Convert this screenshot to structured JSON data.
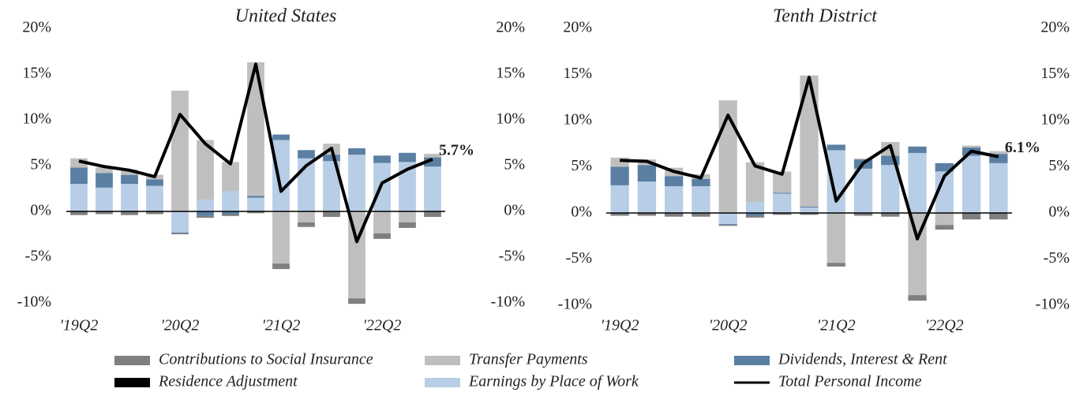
{
  "chart_data": [
    {
      "type": "bar",
      "title": "United States",
      "categories": [
        "'19Q2",
        null,
        null,
        null,
        "'20Q2",
        null,
        null,
        null,
        "'21Q2",
        null,
        null,
        null,
        "'22Q2",
        null,
        null
      ],
      "series": [
        {
          "name": "Contributions to Social Insurance",
          "color": "#7f7f7f",
          "values": [
            -0.4,
            -0.3,
            -0.4,
            -0.3,
            -0.1,
            -0.2,
            -0.2,
            -0.2,
            -0.6,
            -0.5,
            -0.6,
            -0.6,
            -0.6,
            -0.6,
            -0.6
          ]
        },
        {
          "name": "Transfer Payments",
          "color": "#bfbfbf",
          "values": [
            1.0,
            0.6,
            0.6,
            0.5,
            13.2,
            6.5,
            3.2,
            14.6,
            -5.7,
            -1.2,
            1.2,
            -9.5,
            -2.4,
            -1.2,
            0.4
          ]
        },
        {
          "name": "Dividends, Interest & Rent",
          "color": "#5a7fa3",
          "values": [
            1.8,
            1.6,
            1.0,
            0.7,
            -0.1,
            -0.5,
            -0.3,
            0.2,
            0.6,
            0.9,
            0.7,
            0.7,
            0.8,
            1.0,
            1.0
          ]
        },
        {
          "name": "Residence Adjustment",
          "color": "#000000",
          "values": [
            0,
            0,
            0,
            0,
            0,
            0,
            0,
            0,
            0,
            0,
            0,
            0,
            0,
            0,
            0
          ]
        },
        {
          "name": "Earnings by Place of Work",
          "color": "#b8cde6",
          "values": [
            3.0,
            2.6,
            3.0,
            2.8,
            -2.3,
            1.3,
            2.2,
            1.5,
            7.8,
            5.8,
            5.5,
            6.2,
            5.3,
            5.4,
            4.9
          ]
        },
        {
          "name": "Total Personal Income",
          "color": "#000000",
          "type": "line",
          "values": [
            5.5,
            4.9,
            4.5,
            3.8,
            10.6,
            7.4,
            5.2,
            16.1,
            2.2,
            5.0,
            6.9,
            -3.3,
            3.1,
            4.6,
            5.7
          ],
          "value_labels": [
            null,
            null,
            null,
            null,
            null,
            null,
            null,
            null,
            null,
            null,
            null,
            null,
            null,
            null,
            "5.7%"
          ]
        }
      ],
      "ylim": [
        -10,
        20
      ],
      "yticks": [
        {
          "value": -10,
          "label": "-10%"
        },
        {
          "value": -5,
          "label": "-5%"
        },
        {
          "value": 0,
          "label": "0%"
        },
        {
          "value": 5,
          "label": "5%"
        },
        {
          "value": 10,
          "label": "10%"
        },
        {
          "value": 15,
          "label": "15%"
        },
        {
          "value": 20,
          "label": "20%"
        }
      ],
      "y2lim": [
        -10,
        20
      ],
      "y2ticks": [
        {
          "value": -10,
          "label": "-10%"
        },
        {
          "value": -5,
          "label": "-5%"
        },
        {
          "value": 0,
          "label": "0%"
        },
        {
          "value": 5,
          "label": "5%"
        },
        {
          "value": 10,
          "label": "10%"
        },
        {
          "value": 15,
          "label": "15%"
        },
        {
          "value": 20,
          "label": "20%"
        }
      ]
    },
    {
      "type": "bar",
      "title": "Tenth District",
      "categories": [
        "'19Q2",
        null,
        null,
        null,
        "'20Q2",
        null,
        null,
        null,
        "'21Q2",
        null,
        null,
        null,
        "'22Q2",
        null,
        null
      ],
      "series": [
        {
          "name": "Contributions to Social Insurance",
          "color": "#7f7f7f",
          "values": [
            -0.3,
            -0.3,
            -0.4,
            -0.4,
            -0.1,
            -0.2,
            -0.2,
            -0.2,
            -0.4,
            -0.3,
            -0.4,
            -0.6,
            -0.5,
            -0.7,
            -0.7
          ]
        },
        {
          "name": "Transfer Payments",
          "color": "#bfbfbf",
          "values": [
            1.0,
            0.6,
            0.9,
            0.5,
            12.2,
            4.3,
            2.3,
            14.2,
            -5.4,
            0.1,
            1.5,
            -8.9,
            -1.3,
            0.2,
            0.3
          ]
        },
        {
          "name": "Dividends, Interest & Rent",
          "color": "#5a7fa3",
          "values": [
            2.0,
            1.8,
            1.1,
            0.8,
            -0.1,
            -0.3,
            0.1,
            0.1,
            0.6,
            1.0,
            1.0,
            0.7,
            0.9,
            0.9,
            1.0
          ]
        },
        {
          "name": "Residence Adjustment",
          "color": "#000000",
          "values": [
            0,
            0,
            0,
            0,
            0,
            0,
            0,
            0,
            0,
            0,
            0,
            0,
            0,
            0,
            0
          ]
        },
        {
          "name": "Earnings by Place of Work",
          "color": "#b8cde6",
          "values": [
            3.0,
            3.4,
            2.9,
            2.9,
            -1.2,
            1.2,
            2.1,
            0.6,
            6.8,
            4.8,
            5.2,
            6.5,
            4.5,
            6.2,
            5.4
          ]
        },
        {
          "name": "Total Personal Income",
          "color": "#000000",
          "type": "line",
          "values": [
            5.7,
            5.6,
            4.5,
            3.8,
            10.6,
            5.1,
            4.2,
            14.7,
            1.3,
            5.4,
            7.3,
            -2.8,
            4.0,
            6.7,
            6.1
          ],
          "value_labels": [
            null,
            null,
            null,
            null,
            null,
            null,
            null,
            null,
            null,
            null,
            null,
            null,
            null,
            null,
            "6.1%"
          ]
        }
      ],
      "ylim": [
        -10,
        20
      ],
      "yticks": [
        {
          "value": -10,
          "label": "-10%"
        },
        {
          "value": -5,
          "label": "-5%"
        },
        {
          "value": 0,
          "label": "0%"
        },
        {
          "value": 5,
          "label": "5%"
        },
        {
          "value": 10,
          "label": "10%"
        },
        {
          "value": 15,
          "label": "15%"
        },
        {
          "value": 20,
          "label": "20%"
        }
      ],
      "y2lim": [
        -10,
        20
      ],
      "y2ticks": [
        {
          "value": -10,
          "label": "-10%"
        },
        {
          "value": -5,
          "label": "-5%"
        },
        {
          "value": 0,
          "label": "0%"
        },
        {
          "value": 5,
          "label": "5%"
        },
        {
          "value": 10,
          "label": "10%"
        },
        {
          "value": 15,
          "label": "15%"
        },
        {
          "value": 20,
          "label": "20%"
        }
      ]
    }
  ]
}
